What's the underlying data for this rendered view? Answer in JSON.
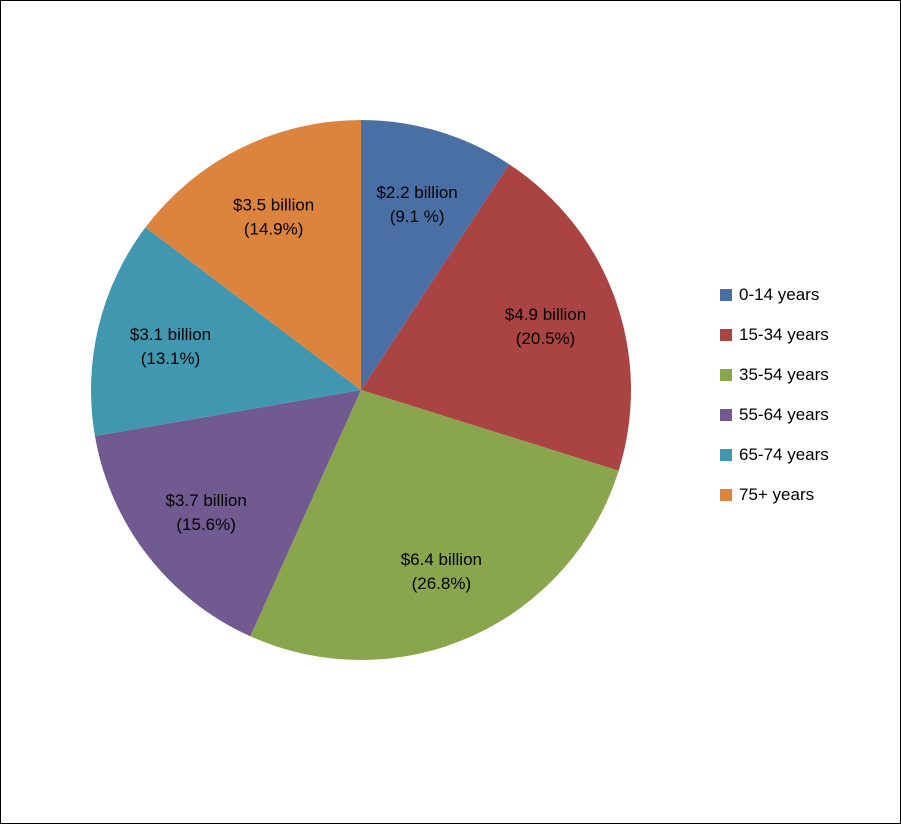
{
  "chart_data": {
    "type": "pie",
    "categories": [
      "0-14 years",
      "15-34 years",
      "35-54 years",
      "55-64 years",
      "65-74 years",
      "75+ years"
    ],
    "values": [
      2.2,
      4.9,
      6.4,
      3.7,
      3.1,
      3.5
    ],
    "percentages": [
      9.1,
      20.5,
      26.8,
      15.6,
      13.1,
      14.9
    ],
    "slice_labels": [
      [
        "$2.2 billion",
        "(9.1 %)"
      ],
      [
        "$4.9 billion",
        "(20.5%)"
      ],
      [
        "$6.4 billion",
        "(26.8%)"
      ],
      [
        "$3.7 billion",
        "(15.6%)"
      ],
      [
        "$3.1 billion",
        "(13.1%)"
      ],
      [
        "$3.5 billion",
        "(14.9%)"
      ]
    ],
    "colors": [
      "#4a6fa5",
      "#a94442",
      "#8aa64d",
      "#715a8f",
      "#4197af",
      "#dc843e"
    ],
    "start": "12 o'clock",
    "direction": "clockwise",
    "legend_position": "right"
  }
}
